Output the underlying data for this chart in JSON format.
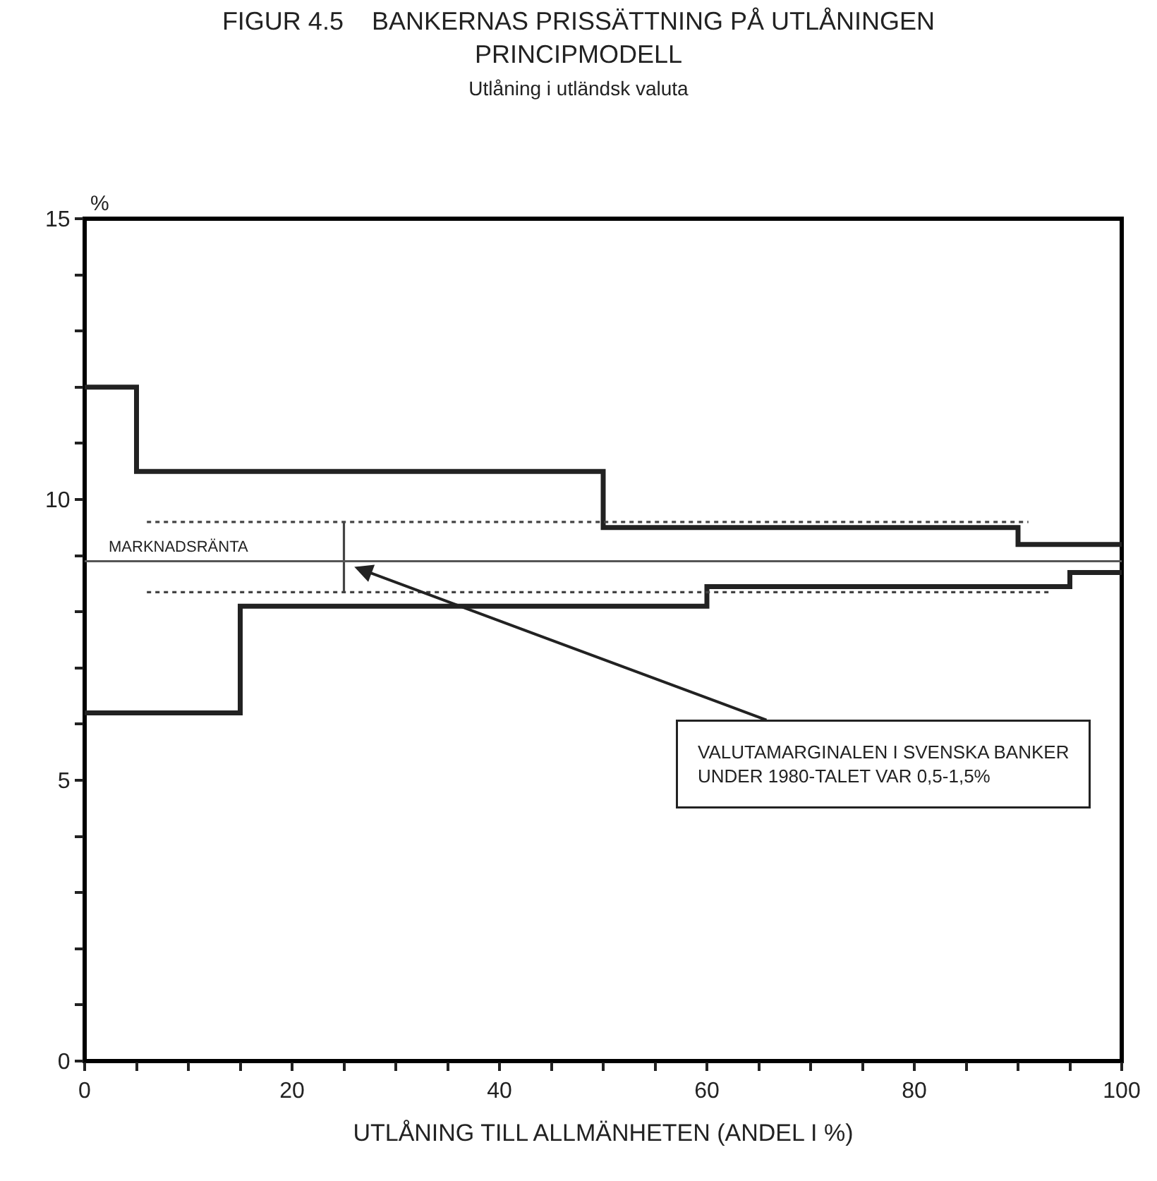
{
  "chart_data": {
    "type": "step",
    "title": "FIGUR 4.5    BANKERNAS PRISSÄTTNING PÅ UTLÅNINGEN\nPRINCIPMODELL",
    "subtitle": "Utlåning i utländsk valuta",
    "xlabel": "UTLÅNING TILL ALLMÄNHETEN (ANDEL I %)",
    "ylabel": "%",
    "xlim": [
      0,
      100
    ],
    "ylim": [
      0,
      15
    ],
    "xticks": [
      0,
      {
        "value": 5,
        "label": null
      },
      {
        "value": 10,
        "label": null
      },
      {
        "value": 15,
        "label": null
      },
      20,
      {
        "value": 25,
        "label": null
      },
      {
        "value": 30,
        "label": null
      },
      {
        "value": 35,
        "label": null
      },
      40,
      {
        "value": 45,
        "label": null
      },
      {
        "value": 50,
        "label": null
      },
      {
        "value": 55,
        "label": null
      },
      60,
      {
        "value": 65,
        "label": null
      },
      {
        "value": 70,
        "label": null
      },
      {
        "value": 75,
        "label": null
      },
      80,
      {
        "value": 85,
        "label": null
      },
      {
        "value": 90,
        "label": null
      },
      {
        "value": 95,
        "label": null
      },
      100
    ],
    "yticks": [
      0,
      {
        "value": 1,
        "label": null
      },
      {
        "value": 2,
        "label": null
      },
      {
        "value": 3,
        "label": null
      },
      {
        "value": 4,
        "label": null
      },
      5,
      {
        "value": 6,
        "label": null
      },
      {
        "value": 7,
        "label": null
      },
      {
        "value": 8,
        "label": null
      },
      {
        "value": 9,
        "label": null
      },
      10,
      {
        "value": 11,
        "label": null
      },
      {
        "value": 12,
        "label": null
      },
      {
        "value": 13,
        "label": null
      },
      {
        "value": 14,
        "label": null
      },
      15
    ],
    "grid": false,
    "marker": "none",
    "series": [
      {
        "type": "step",
        "color": "#222222",
        "x": [
          0,
          5,
          50,
          90,
          100
        ],
        "values": [
          12,
          10.5,
          9.5,
          9.2,
          9.2
        ],
        "line_style": "solid"
      },
      {
        "type": "step",
        "color": "#222222",
        "x": [
          0,
          15,
          60,
          95,
          100
        ],
        "values": [
          6.2,
          8.1,
          8.45,
          8.7,
          8.7
        ],
        "line_style": "solid"
      },
      {
        "type": "line",
        "color": "#444444",
        "x": [
          6,
          91
        ],
        "values": [
          9.6,
          9.6
        ],
        "line_style": "dotted"
      },
      {
        "type": "line",
        "color": "#444444",
        "x": [
          6,
          93
        ],
        "values": [
          8.35,
          8.35
        ],
        "line_style": "dotted"
      },
      {
        "type": "line",
        "color": "#444444",
        "x": [
          25,
          25
        ],
        "values": [
          8.35,
          9.6
        ],
        "line_style": "solid"
      }
    ],
    "ref_lines": [
      {
        "axis": "y",
        "value": 8.9,
        "label": "MARKNADSRÄNTA",
        "color": "#555555",
        "line_style": "solid"
      }
    ],
    "annotations": [
      {
        "text": "VALUTAMARGINALEN I SVENSKA BANKER\nUNDER 1980-TALET VAR 0,5-1,5%",
        "x": 26,
        "y": 8.8
      }
    ]
  }
}
